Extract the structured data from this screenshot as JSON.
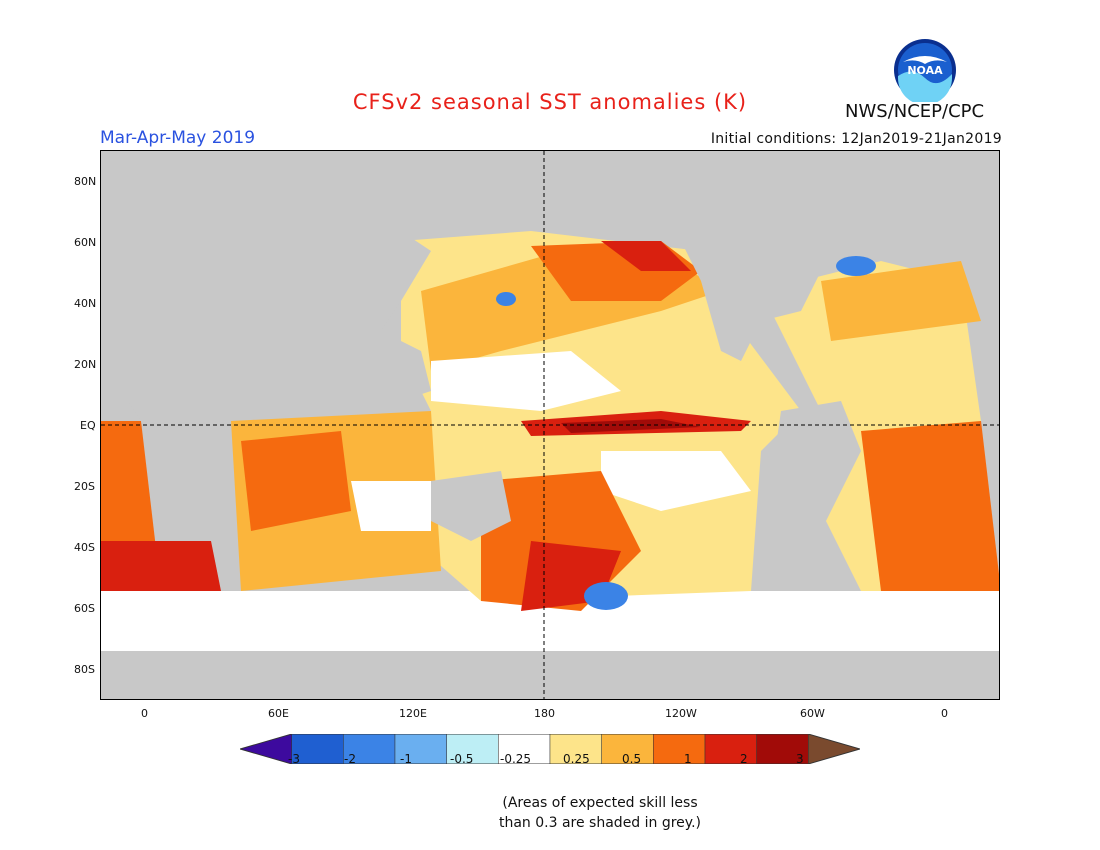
{
  "header": {
    "title": "CFSv2 seasonal SST anomalies (K)",
    "period": "Mar-Apr-May 2019",
    "initial_conditions": "Initial conditions: 12Jan2019-21Jan2019",
    "agency": "NWS/NCEP/CPC",
    "logo_text": "NOAA"
  },
  "map": {
    "lat_labels": [
      "80N",
      "60N",
      "40N",
      "20N",
      "EQ",
      "20S",
      "40S",
      "60S",
      "80S"
    ],
    "lon_labels": [
      "0",
      "60E",
      "120E",
      "180",
      "120W",
      "60W",
      "0"
    ],
    "land_color": "#c8c8c8",
    "reference_lines": [
      "equator",
      "dateline"
    ]
  },
  "legend": {
    "tick_labels": [
      "-3",
      "-2",
      "-1",
      "-0.5",
      "-0.25",
      "0.25",
      "0.5",
      "1",
      "2",
      "3"
    ],
    "colors": [
      "#3d0a9e",
      "#1f5fd1",
      "#3b83e6",
      "#6aaff0",
      "#bdeef5",
      "#ffffff",
      "#fde48a",
      "#fbb53c",
      "#f56a0f",
      "#d9200f",
      "#a10b08",
      "#7a4a2e"
    ]
  },
  "note": {
    "line1": "(Areas of expected skill less",
    "line2": "than 0.3 are shaded in grey.)"
  }
}
